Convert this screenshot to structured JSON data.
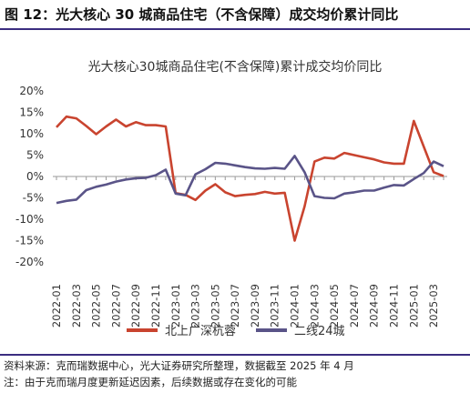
{
  "figure": {
    "label": "图 12：光大核心 30 城商品住宅（不含保障）成交均价累计同比",
    "source": "资料来源：克而瑞数据中心，光大证券研究所整理，数据截至 2025 年 4 月",
    "note": "注：由于克而瑞月度更新延迟因素，后续数据或存在变化的可能"
  },
  "colors": {
    "rule": "#3b2d80",
    "series_a": "#c9442f",
    "series_b": "#5a5488",
    "axis": "#9a9a9a",
    "text": "#333333"
  },
  "chart_data": {
    "type": "line",
    "title": "光大核心30城商品住宅(不含保障)累计成交均价同比",
    "xlabel": "",
    "ylabel": "",
    "ylim": [
      -20,
      20
    ],
    "yticks": [
      "20%",
      "15%",
      "10%",
      "5%",
      "0%",
      "-5%",
      "-10%",
      "-15%",
      "-20%"
    ],
    "y_tick_values": [
      20,
      15,
      10,
      5,
      0,
      -5,
      -10,
      -15,
      -20
    ],
    "x_tick_labels": [
      "2022-01",
      "2022-03",
      "2022-05",
      "2022-07",
      "2022-09",
      "2022-11",
      "2023-01",
      "2023-03",
      "2023-05",
      "2023-07",
      "2023-09",
      "2023-11",
      "2024-01",
      "2024-03",
      "2024-05",
      "2024-07",
      "2024-09",
      "2024-11",
      "2025-01",
      "2025-03"
    ],
    "x": [
      "2022-01",
      "2022-02",
      "2022-03",
      "2022-04",
      "2022-05",
      "2022-06",
      "2022-07",
      "2022-08",
      "2022-09",
      "2022-10",
      "2022-11",
      "2022-12",
      "2023-01",
      "2023-02",
      "2023-03",
      "2023-04",
      "2023-05",
      "2023-06",
      "2023-07",
      "2023-08",
      "2023-09",
      "2023-10",
      "2023-11",
      "2023-12",
      "2024-01",
      "2024-02",
      "2024-03",
      "2024-04",
      "2024-05",
      "2024-06",
      "2024-07",
      "2024-08",
      "2024-09",
      "2024-10",
      "2024-11",
      "2024-12",
      "2025-01",
      "2025-02",
      "2025-03",
      "2025-04"
    ],
    "series": [
      {
        "name": "北上广深杭蓉",
        "color": "#c9442f",
        "values": [
          11.5,
          14.0,
          13.6,
          11.8,
          9.9,
          11.7,
          13.3,
          11.7,
          12.7,
          12.0,
          12.0,
          11.7,
          -3.9,
          -4.3,
          -5.5,
          -3.3,
          -1.8,
          -3.7,
          -4.6,
          -4.3,
          -4.1,
          -3.6,
          -4.0,
          -3.8,
          -15.0,
          -7.0,
          3.5,
          4.4,
          4.2,
          5.5,
          5.0,
          4.5,
          4.0,
          3.3,
          3.0,
          3.0,
          13.0,
          7.0,
          1.0,
          0.1
        ]
      },
      {
        "name": "二线24城",
        "color": "#5a5488",
        "values": [
          -6.2,
          -5.7,
          -5.4,
          -3.2,
          -2.4,
          -1.9,
          -1.2,
          -0.7,
          -0.4,
          -0.3,
          0.3,
          1.6,
          -4.0,
          -4.4,
          0.5,
          1.7,
          3.2,
          3.0,
          2.6,
          2.2,
          1.9,
          1.8,
          2.0,
          1.8,
          4.8,
          1.0,
          -4.6,
          -5.0,
          -5.1,
          -4.0,
          -3.7,
          -3.3,
          -3.3,
          -2.6,
          -2.0,
          -2.1,
          -0.6,
          0.8,
          3.5,
          2.4
        ]
      }
    ],
    "legend_position": "bottom",
    "grid": false
  }
}
